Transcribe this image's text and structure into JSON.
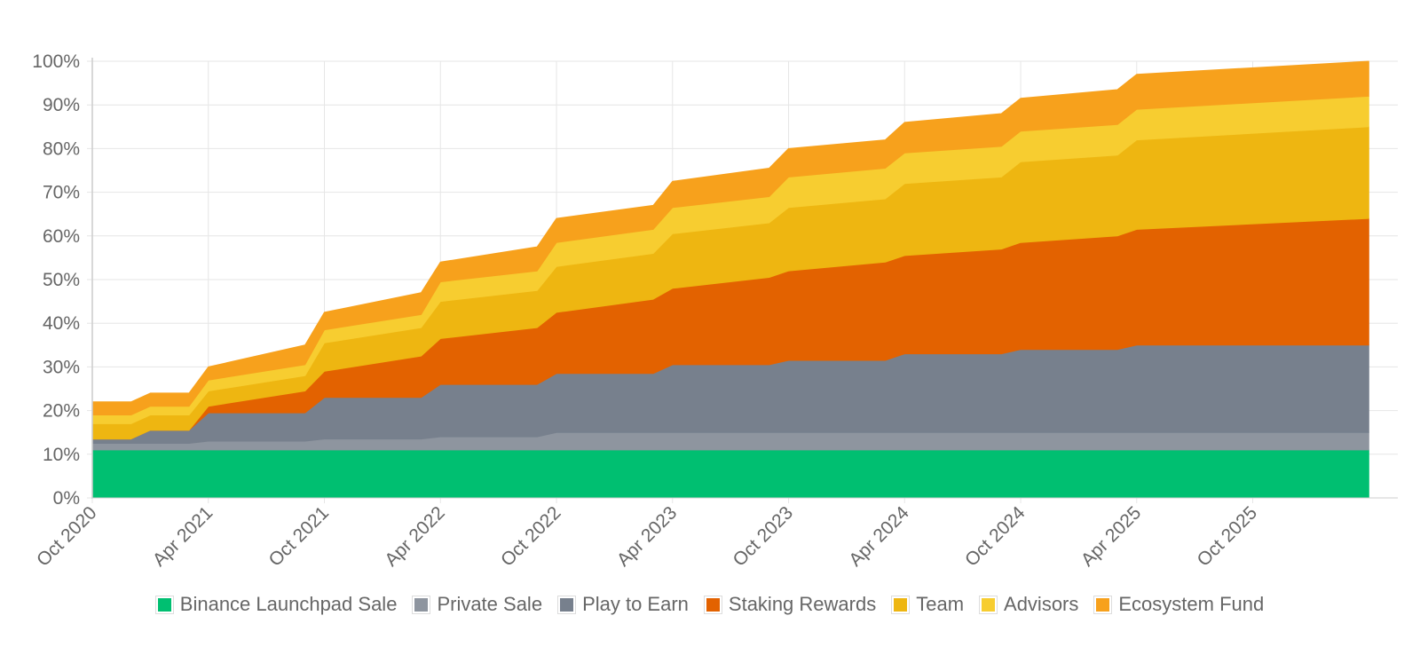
{
  "chart_data": {
    "type": "area",
    "stacked": true,
    "title": "",
    "xlabel": "",
    "ylabel": "",
    "ylim": [
      0,
      100
    ],
    "y_ticks": [
      "0%",
      "10%",
      "20%",
      "30%",
      "40%",
      "50%",
      "60%",
      "70%",
      "80%",
      "90%",
      "100%"
    ],
    "x_ticks": [
      "Oct 2020",
      "Apr 2021",
      "Oct 2021",
      "Apr 2022",
      "Oct 2022",
      "Apr 2023",
      "Oct 2023",
      "Apr 2024",
      "Oct 2024",
      "Apr 2025",
      "Oct 2025"
    ],
    "x": [
      "2020-10",
      "2020-11",
      "2020-12",
      "2021-01",
      "2021-02",
      "2021-03",
      "2021-04",
      "2021-09",
      "2021-10",
      "2022-03",
      "2022-04",
      "2022-09",
      "2022-10",
      "2023-03",
      "2023-04",
      "2023-09",
      "2023-10",
      "2024-03",
      "2024-04",
      "2024-09",
      "2024-10",
      "2025-03",
      "2025-04",
      "2026-04"
    ],
    "grid": true,
    "legend_position": "bottom",
    "series": [
      {
        "name": "Binance Launchpad Sale",
        "color": "#00bf71",
        "values": [
          11,
          11,
          11,
          11,
          11,
          11,
          11,
          11,
          11,
          11,
          11,
          11,
          11,
          11,
          11,
          11,
          11,
          11,
          11,
          11,
          11,
          11,
          11,
          11
        ]
      },
      {
        "name": "Private Sale",
        "color": "#8e959f",
        "values": [
          1.5,
          1.5,
          1.5,
          1.5,
          1.5,
          1.5,
          2,
          2,
          2.5,
          2.5,
          3,
          3,
          4,
          4,
          4,
          4,
          4,
          4,
          4,
          4,
          4,
          4,
          4,
          4
        ]
      },
      {
        "name": "Play to Earn",
        "color": "#77808d",
        "values": [
          1,
          1,
          1,
          3,
          3,
          3,
          6.5,
          6.5,
          9.5,
          9.5,
          12,
          12,
          13.5,
          13.5,
          15.5,
          15.5,
          16.5,
          16.5,
          18,
          18,
          19,
          19,
          20,
          20
        ]
      },
      {
        "name": "Staking Rewards",
        "color": "#e36200",
        "values": [
          0,
          0,
          0,
          0,
          0,
          0,
          1.5,
          5,
          6,
          9.5,
          10.5,
          13,
          14,
          17,
          17.5,
          20,
          20.5,
          22.5,
          22.5,
          24,
          24.5,
          26,
          26.5,
          29
        ]
      },
      {
        "name": "Team",
        "color": "#eeb611",
        "values": [
          3.5,
          3.5,
          3.5,
          3.5,
          3.5,
          3.5,
          3.5,
          3.5,
          6.5,
          6.5,
          8.5,
          8.5,
          10.5,
          10.5,
          12.5,
          12.5,
          14.5,
          14.5,
          16.5,
          16.5,
          18.5,
          18.5,
          20.5,
          21
        ]
      },
      {
        "name": "Advisors",
        "color": "#f7cd30",
        "values": [
          2,
          2,
          2,
          2,
          2,
          2,
          2.5,
          2.5,
          3,
          3,
          4.5,
          4.5,
          5.5,
          5.5,
          6,
          6,
          7,
          7,
          7,
          7,
          7,
          7,
          7,
          7
        ]
      },
      {
        "name": "Ecosystem Fund",
        "color": "#f7a11c",
        "values": [
          3,
          3,
          3,
          3,
          3,
          3,
          3,
          4.5,
          4,
          5,
          4.5,
          5.5,
          5.5,
          5.5,
          6,
          6.5,
          6.5,
          6.5,
          7,
          7.5,
          7.5,
          8,
          8,
          8
        ]
      }
    ]
  }
}
